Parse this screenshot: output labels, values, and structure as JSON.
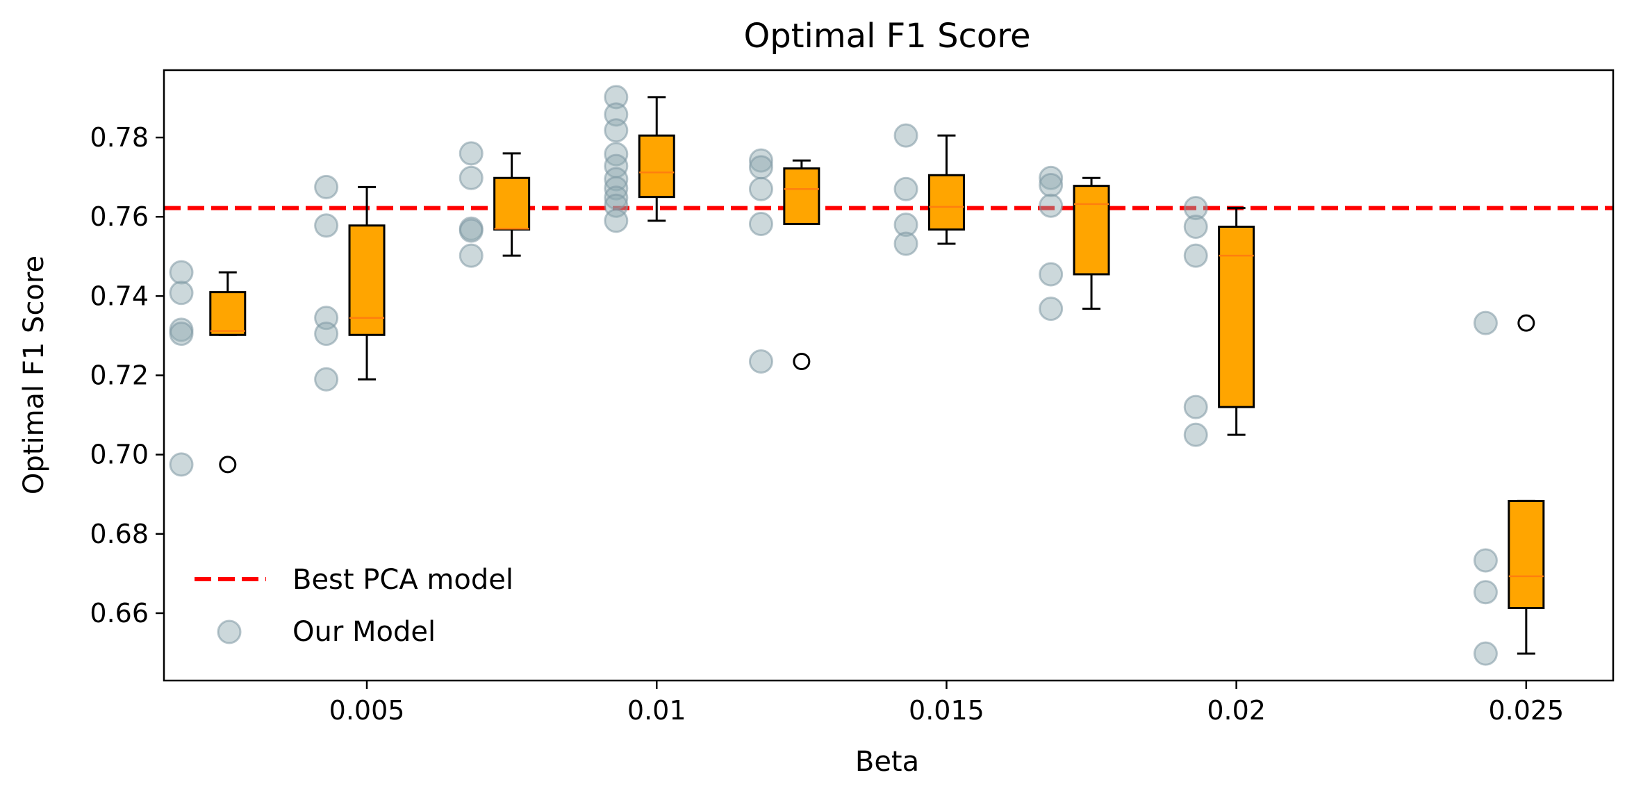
{
  "chart_data": {
    "type": "box",
    "title": "Optimal F1 Score",
    "xlabel": "Beta",
    "ylabel": "Optimal F1 Score",
    "xlim": [
      0.0015,
      0.0265
    ],
    "ylim": [
      0.643,
      0.797
    ],
    "xticks": [
      0.005,
      0.01,
      0.015,
      0.02,
      0.025
    ],
    "xtick_labels": [
      "0.005",
      "0.01",
      "0.015",
      "0.02",
      "0.025"
    ],
    "yticks": [
      0.66,
      0.68,
      0.7,
      0.72,
      0.74,
      0.76,
      0.78
    ],
    "ytick_labels": [
      "0.66",
      "0.68",
      "0.70",
      "0.72",
      "0.74",
      "0.76",
      "0.78"
    ],
    "reference_line": {
      "label": "Best PCA model",
      "y": 0.7622,
      "color": "#ff0000",
      "style": "dashed"
    },
    "scatter_series": {
      "label": "Our Model",
      "color": "#8fa8b0",
      "points": [
        {
          "x": 0.0018,
          "values": [
            0.746,
            0.7408,
            0.7315,
            0.7305,
            0.6975
          ]
        },
        {
          "x": 0.0043,
          "values": [
            0.7675,
            0.7578,
            0.7345,
            0.7305,
            0.719
          ]
        },
        {
          "x": 0.0068,
          "values": [
            0.776,
            0.7698,
            0.757,
            0.7565,
            0.7502
          ]
        },
        {
          "x": 0.0093,
          "values": [
            0.7902,
            0.7858,
            0.7818,
            0.7758,
            0.7728,
            0.7695,
            0.7672,
            0.7648,
            0.7628,
            0.759
          ]
        },
        {
          "x": 0.0118,
          "values": [
            0.7742,
            0.7725,
            0.767,
            0.7582,
            0.7235
          ]
        },
        {
          "x": 0.0143,
          "values": [
            0.7805,
            0.767,
            0.758,
            0.7532
          ]
        },
        {
          "x": 0.0168,
          "values": [
            0.7698,
            0.768,
            0.7628,
            0.7455,
            0.7368
          ]
        },
        {
          "x": 0.0193,
          "values": [
            0.7622,
            0.7575,
            0.7502,
            0.712,
            0.705
          ]
        },
        {
          "x": 0.0243,
          "values": [
            0.7332,
            0.6733,
            0.6653,
            0.6498
          ]
        }
      ]
    },
    "box_series": {
      "fill_color": "#ffa500",
      "median_color": "#ff7f0e",
      "boxes": [
        {
          "x": 0.0026,
          "whisker_low": 0.7302,
          "q1": 0.7302,
          "median": 0.7312,
          "q3": 0.741,
          "whisker_high": 0.746,
          "outliers": [
            0.6975
          ]
        },
        {
          "x": 0.005,
          "whisker_low": 0.719,
          "q1": 0.7302,
          "median": 0.7345,
          "q3": 0.7578,
          "whisker_high": 0.7675,
          "outliers": []
        },
        {
          "x": 0.0075,
          "whisker_low": 0.7502,
          "q1": 0.7568,
          "median": 0.757,
          "q3": 0.7698,
          "whisker_high": 0.776,
          "outliers": []
        },
        {
          "x": 0.01,
          "whisker_low": 0.759,
          "q1": 0.765,
          "median": 0.7712,
          "q3": 0.7805,
          "whisker_high": 0.7902,
          "outliers": []
        },
        {
          "x": 0.0125,
          "whisker_low": 0.7582,
          "q1": 0.7582,
          "median": 0.767,
          "q3": 0.7722,
          "whisker_high": 0.7742,
          "outliers": [
            0.7235
          ]
        },
        {
          "x": 0.015,
          "whisker_low": 0.7532,
          "q1": 0.7568,
          "median": 0.7625,
          "q3": 0.7705,
          "whisker_high": 0.7805,
          "outliers": []
        },
        {
          "x": 0.0175,
          "whisker_low": 0.7368,
          "q1": 0.7455,
          "median": 0.7632,
          "q3": 0.7678,
          "whisker_high": 0.7698,
          "outliers": []
        },
        {
          "x": 0.02,
          "whisker_low": 0.705,
          "q1": 0.712,
          "median": 0.7502,
          "q3": 0.7575,
          "whisker_high": 0.7622,
          "outliers": []
        },
        {
          "x": 0.025,
          "whisker_low": 0.6498,
          "q1": 0.6613,
          "median": 0.6693,
          "q3": 0.6883,
          "whisker_high": 0.6883,
          "outliers": [
            0.7332
          ]
        }
      ]
    },
    "legend": {
      "location": "lower-left",
      "entries": [
        "Best PCA model",
        "Our Model"
      ]
    }
  }
}
